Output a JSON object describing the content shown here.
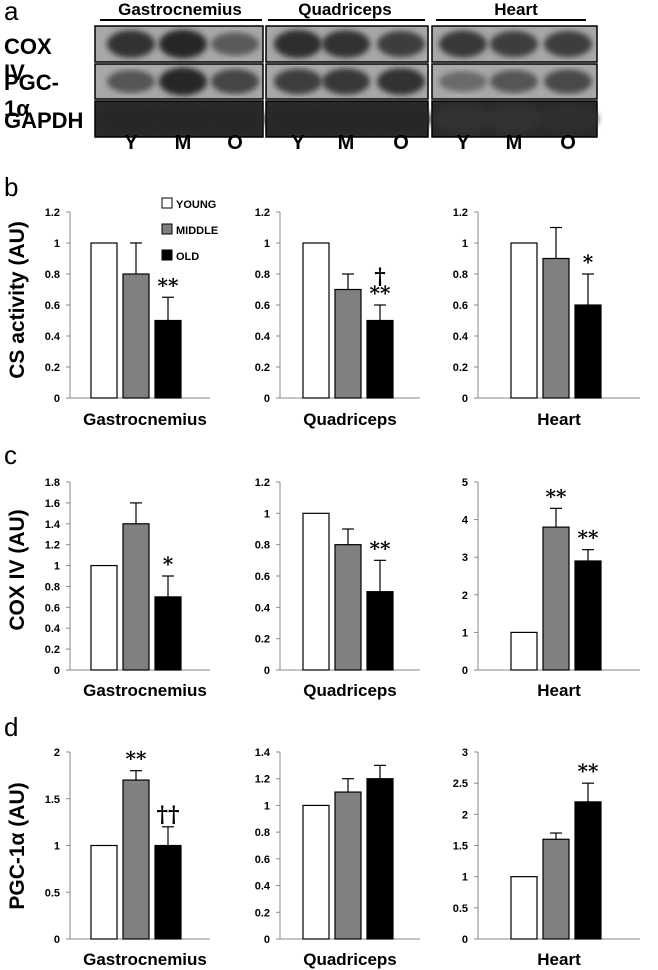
{
  "panel_letters": {
    "a": "a",
    "b": "b",
    "c": "c",
    "d": "d"
  },
  "blots": {
    "tissues": [
      "Gastrocnemius",
      "Quadriceps",
      "Heart"
    ],
    "proteins": [
      "COX IV",
      "PGC-1α",
      "GAPDH"
    ],
    "lanes": [
      "Y",
      "M",
      "O"
    ]
  },
  "legend": [
    "YOUNG",
    "MIDDLE",
    "OLD"
  ],
  "colors": {
    "young": "#ffffff",
    "middle": "#808080",
    "old": "#000000",
    "stroke": "#000000"
  },
  "chart_data": [
    {
      "type": "bar",
      "row": "b",
      "ylabel": "CS activity (AU)",
      "xlabel": "Gastrocnemius",
      "categories": [
        "YOUNG",
        "MIDDLE",
        "OLD"
      ],
      "values": [
        1.0,
        0.8,
        0.5
      ],
      "errors": [
        0,
        0.2,
        0.15
      ],
      "annotations": [
        "",
        "",
        "**"
      ],
      "ylim": [
        0,
        1.2
      ],
      "ticks": [
        "0",
        "0.2",
        "0.4",
        "0.6",
        "0.8",
        "1",
        "1.2"
      ]
    },
    {
      "type": "bar",
      "row": "b",
      "ylabel": "",
      "xlabel": "Quadriceps",
      "categories": [
        "YOUNG",
        "MIDDLE",
        "OLD"
      ],
      "values": [
        1.0,
        0.7,
        0.5
      ],
      "errors": [
        0,
        0.1,
        0.1
      ],
      "annotations": [
        "",
        "",
        "†\n**"
      ],
      "ylim": [
        0,
        1.2
      ],
      "ticks": [
        "0",
        "0.2",
        "0.4",
        "0.6",
        "0.8",
        "1",
        "1.2"
      ]
    },
    {
      "type": "bar",
      "row": "b",
      "ylabel": "",
      "xlabel": "Heart",
      "categories": [
        "YOUNG",
        "MIDDLE",
        "OLD"
      ],
      "values": [
        1.0,
        0.9,
        0.6
      ],
      "errors": [
        0,
        0.2,
        0.2
      ],
      "annotations": [
        "",
        "",
        "*"
      ],
      "ylim": [
        0,
        1.2
      ],
      "ticks": [
        "0",
        "0.2",
        "0.4",
        "0.6",
        "0.8",
        "1",
        "1.2"
      ]
    },
    {
      "type": "bar",
      "row": "c",
      "ylabel": "COX IV (AU)",
      "xlabel": "Gastrocnemius",
      "categories": [
        "YOUNG",
        "MIDDLE",
        "OLD"
      ],
      "values": [
        1.0,
        1.4,
        0.7
      ],
      "errors": [
        0,
        0.2,
        0.2
      ],
      "annotations": [
        "",
        "",
        "*"
      ],
      "ylim": [
        0,
        1.8
      ],
      "ticks": [
        "0",
        "0.2",
        "0.4",
        "0.6",
        "0.8",
        "1",
        "1.2",
        "1.4",
        "1.6",
        "1.8"
      ]
    },
    {
      "type": "bar",
      "row": "c",
      "ylabel": "",
      "xlabel": "Quadriceps",
      "categories": [
        "YOUNG",
        "MIDDLE",
        "OLD"
      ],
      "values": [
        1.0,
        0.8,
        0.5
      ],
      "errors": [
        0,
        0.1,
        0.2
      ],
      "annotations": [
        "",
        "",
        "**"
      ],
      "ylim": [
        0,
        1.2
      ],
      "ticks": [
        "0",
        "0.2",
        "0.4",
        "0.6",
        "0.8",
        "1",
        "1.2"
      ]
    },
    {
      "type": "bar",
      "row": "c",
      "ylabel": "",
      "xlabel": "Heart",
      "categories": [
        "YOUNG",
        "MIDDLE",
        "OLD"
      ],
      "values": [
        1.0,
        3.8,
        2.9
      ],
      "errors": [
        0,
        0.5,
        0.3
      ],
      "annotations": [
        "",
        "**",
        "**"
      ],
      "ylim": [
        0,
        5
      ],
      "ticks": [
        "0",
        "1",
        "2",
        "3",
        "4",
        "5"
      ]
    },
    {
      "type": "bar",
      "row": "d",
      "ylabel": "PGC-1α (AU)",
      "xlabel": "Gastrocnemius",
      "categories": [
        "YOUNG",
        "MIDDLE",
        "OLD"
      ],
      "values": [
        1.0,
        1.7,
        1.0
      ],
      "errors": [
        0,
        0.1,
        0.2
      ],
      "annotations": [
        "",
        "**",
        "††"
      ],
      "ylim": [
        0,
        2
      ],
      "ticks": [
        "0",
        "0.5",
        "1",
        "1.5",
        "2"
      ]
    },
    {
      "type": "bar",
      "row": "d",
      "ylabel": "",
      "xlabel": "Quadriceps",
      "categories": [
        "YOUNG",
        "MIDDLE",
        "OLD"
      ],
      "values": [
        1.0,
        1.1,
        1.2
      ],
      "errors": [
        0,
        0.1,
        0.1
      ],
      "annotations": [
        "",
        "",
        ""
      ],
      "ylim": [
        0,
        1.4
      ],
      "ticks": [
        "0",
        "0.2",
        "0.4",
        "0.6",
        "0.8",
        "1",
        "1.2",
        "1.4"
      ]
    },
    {
      "type": "bar",
      "row": "d",
      "ylabel": "",
      "xlabel": "Heart",
      "categories": [
        "YOUNG",
        "MIDDLE",
        "OLD"
      ],
      "values": [
        1.0,
        1.6,
        2.2
      ],
      "errors": [
        0,
        0.1,
        0.3
      ],
      "annotations": [
        "",
        "",
        "**"
      ],
      "ylim": [
        0,
        3
      ],
      "ticks": [
        "0",
        "0.5",
        "1",
        "1.5",
        "2",
        "2.5",
        "3"
      ]
    }
  ]
}
